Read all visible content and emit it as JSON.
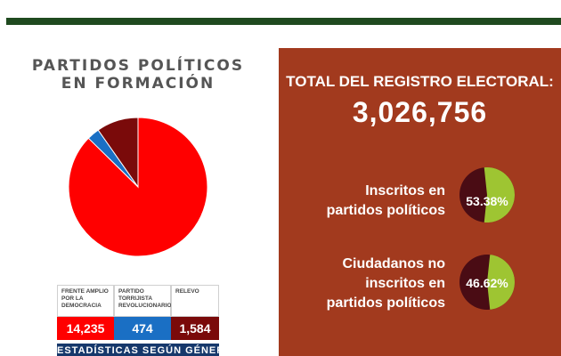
{
  "chart_data": {
    "type": "pie",
    "title": "PARTIDOS POLÍTICOS EN FORMACIÓN",
    "categories": [
      "FRENTE AMPLIO POR LA DEMOCRACIA",
      "PARTIDO TORRIJISTA REVOLUCIONARIO",
      "RELEVO"
    ],
    "values": [
      14235,
      474,
      1584
    ],
    "value_labels": [
      "14,235",
      "474",
      "1,584"
    ],
    "colors": [
      "#ff0000",
      "#1a6fc4",
      "#7a0a0a"
    ]
  },
  "footer": {
    "label": "ESTADÍSTICAS SEGÚN GÉNERO"
  },
  "registro": {
    "total_label": "TOTAL DEL REGISTRO ELECTORAL:",
    "total_value": "3,026,756",
    "stats": [
      {
        "label_lines": [
          "Inscritos en",
          "partidos políticos"
        ],
        "percent": 53.38,
        "percent_label": "53.38%"
      },
      {
        "label_lines": [
          "Ciudadanos no",
          "inscritos en",
          "partidos políticos"
        ],
        "percent": 46.62,
        "percent_label": "46.62%"
      }
    ],
    "colors": {
      "panel": "#a23a1e",
      "circle_dark": "#4a0c14",
      "circle_light": "#9ec532"
    }
  }
}
